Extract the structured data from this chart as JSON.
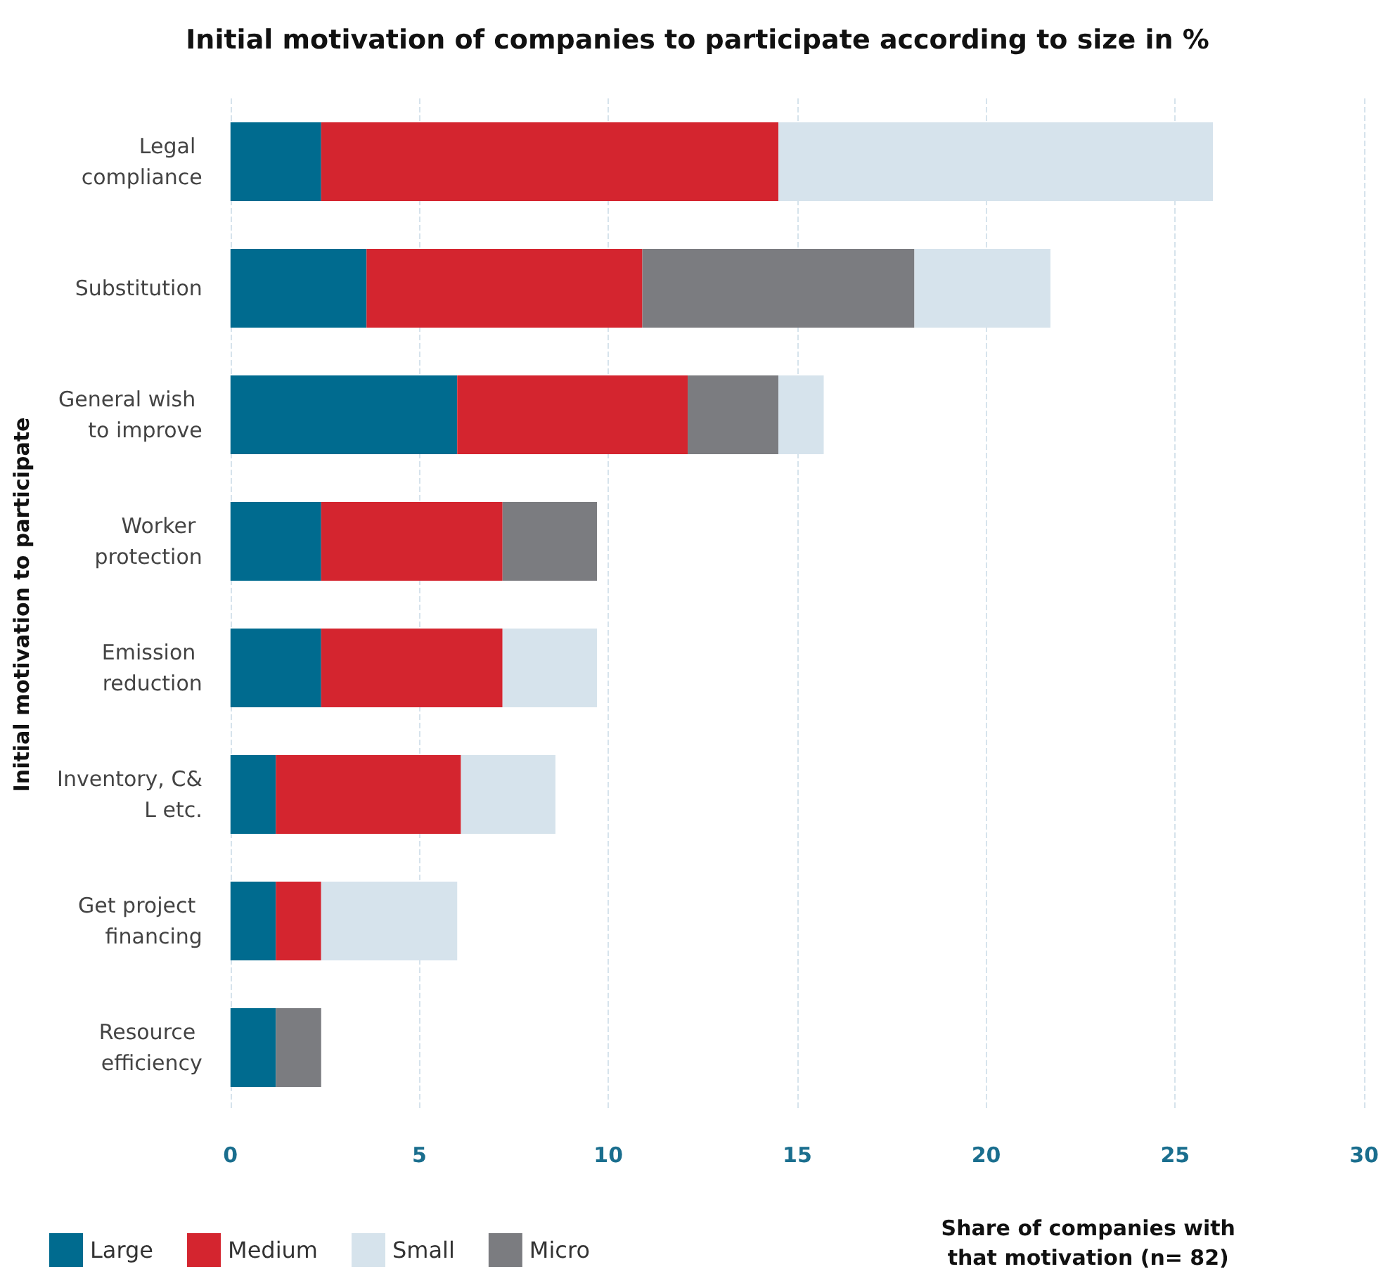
{
  "chart_data": {
    "type": "bar",
    "orientation": "horizontal",
    "stacked": true,
    "title": "Initial motivation of companies to participate according to size in %",
    "xlabel": "Share of companies with that motivation (n= 82)",
    "ylabel": "Initial motivation to participate",
    "categories": [
      "Legal compliance",
      "Substitution",
      "General wish to improve",
      "Worker protection",
      "Emission reduction",
      "Inventory, C&L etc.",
      "Get project financing",
      "Resource efficiency"
    ],
    "series": [
      {
        "name": "Large",
        "color": "#006b8f",
        "values": [
          2.4,
          3.6,
          6.0,
          2.4,
          2.4,
          1.2,
          1.2,
          1.2
        ]
      },
      {
        "name": "Medium",
        "color": "#d4252f",
        "values": [
          12.1,
          7.3,
          6.1,
          4.8,
          4.8,
          4.9,
          1.2,
          null
        ]
      },
      {
        "name": "Micro",
        "color": "#7b7c80",
        "values": [
          null,
          7.2,
          2.4,
          2.5,
          null,
          null,
          null,
          1.2
        ]
      },
      {
        "name": "Small",
        "color": "#d6e3ec",
        "values": [
          11.5,
          3.6,
          1.2,
          null,
          2.5,
          2.5,
          3.6,
          null
        ]
      }
    ],
    "xlim": [
      0,
      30
    ],
    "xticks": [
      0,
      5,
      10,
      15,
      20,
      25,
      30
    ],
    "grid": "x",
    "legend": "bottom left"
  }
}
